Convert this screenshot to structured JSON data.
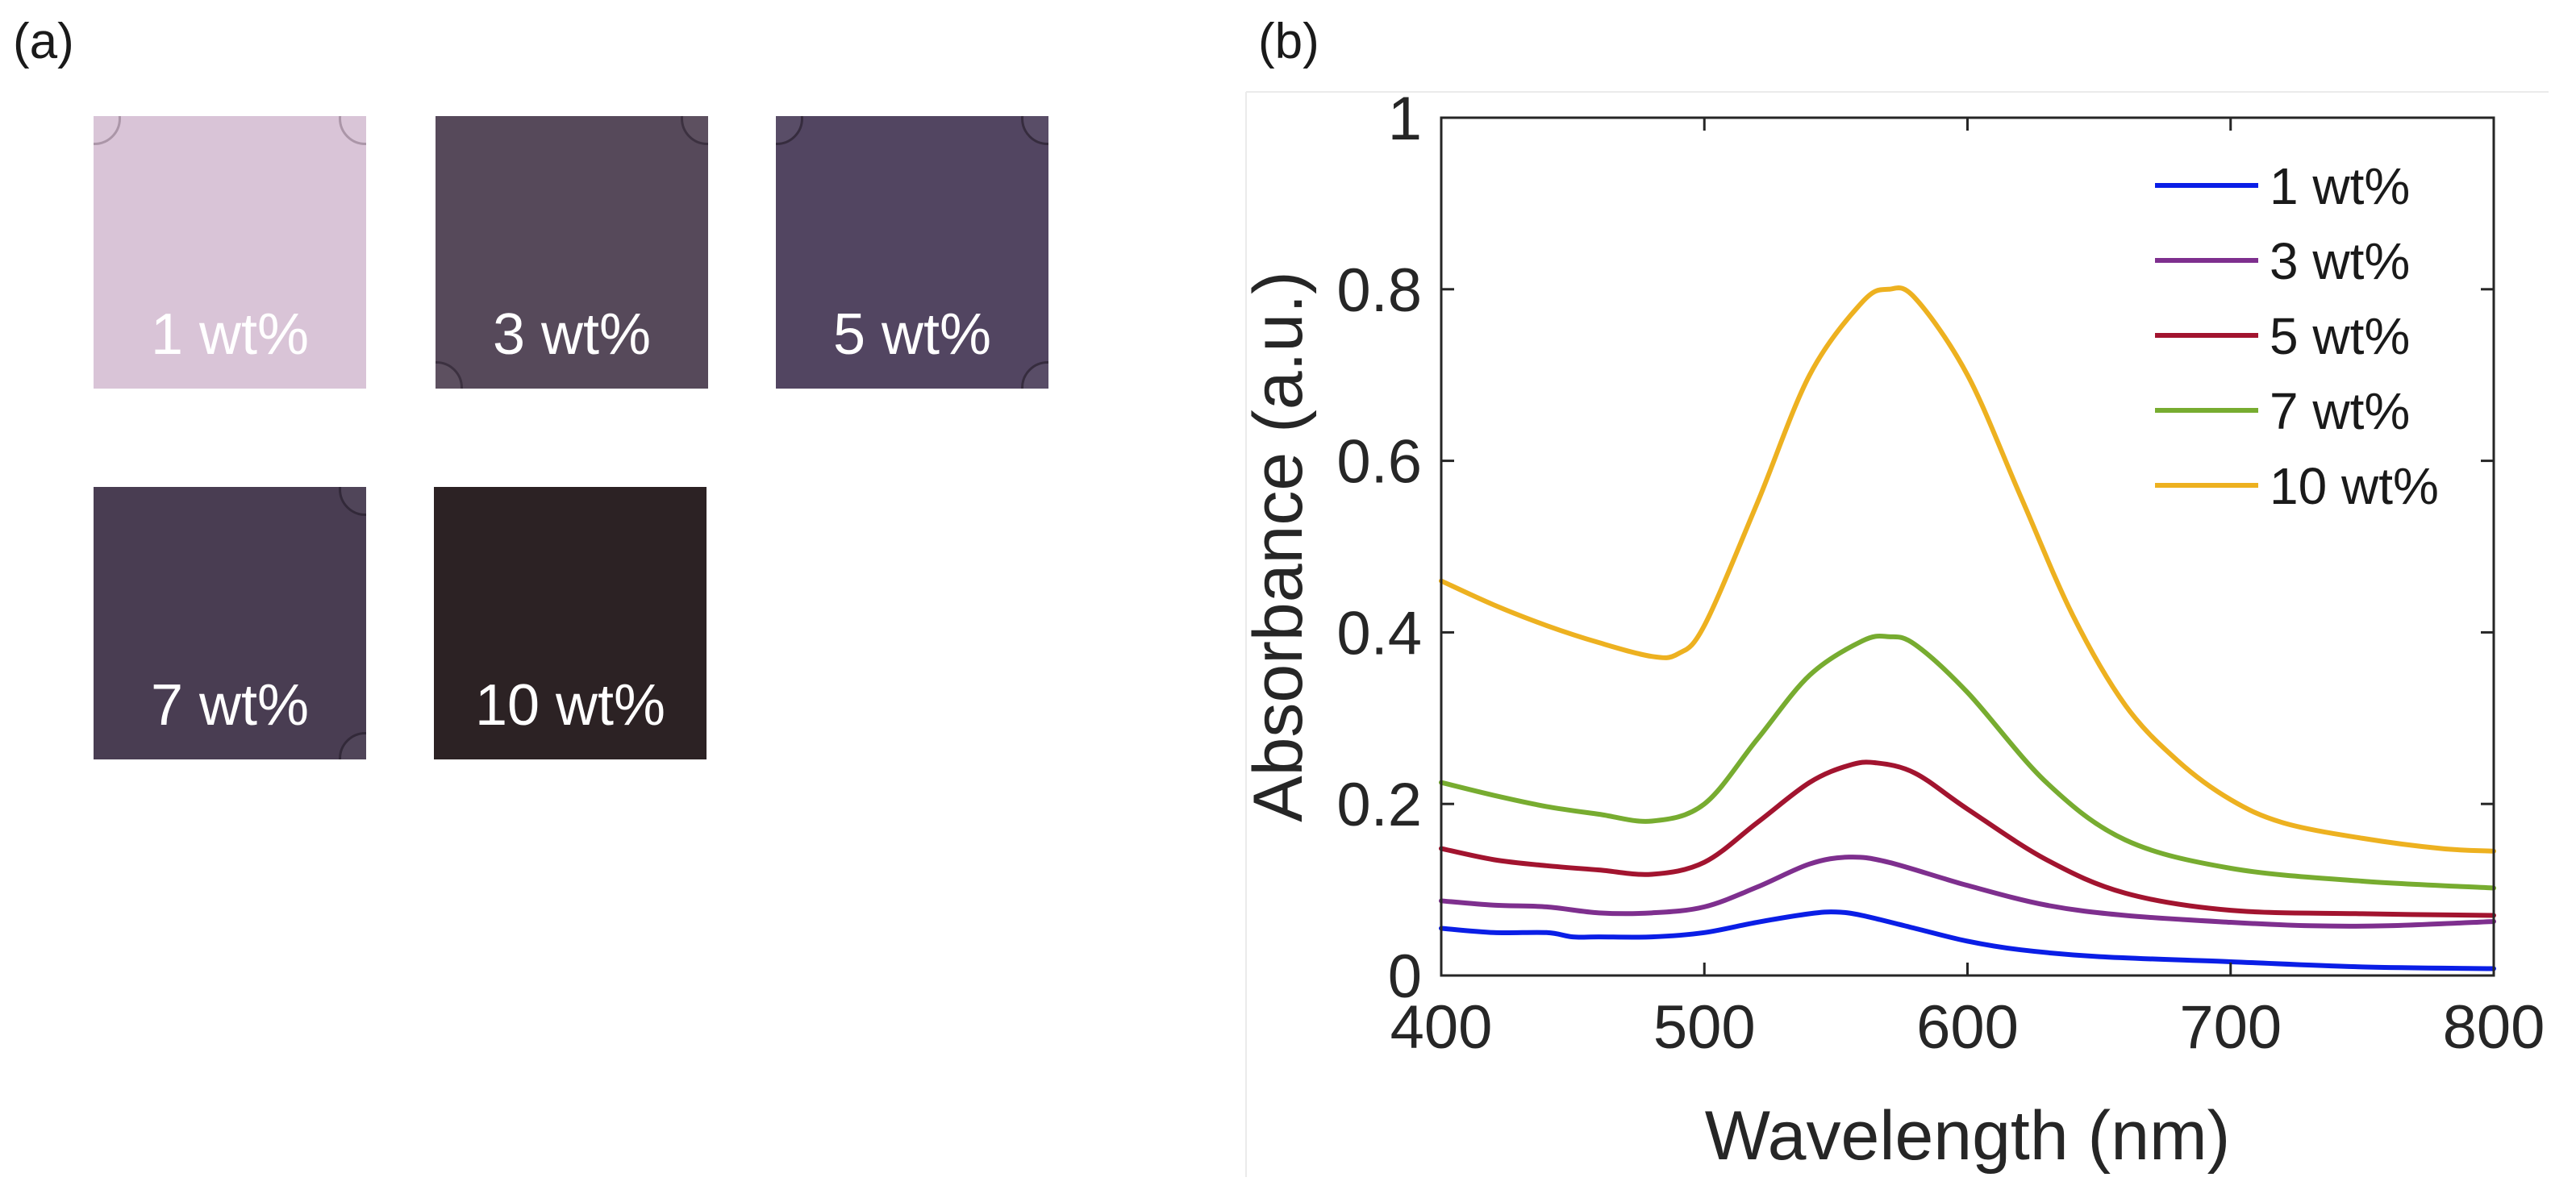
{
  "panel_a": {
    "label": "(a)",
    "samples": [
      {
        "label": "1 wt%",
        "color": "#d9c4d7",
        "edge": "#c9b1c6"
      },
      {
        "label": "3 wt%",
        "color": "#56495a",
        "edge": "#463a4b"
      },
      {
        "label": "5 wt%",
        "color": "#524561",
        "edge": "#3f3449"
      },
      {
        "label": "7 wt%",
        "color": "#493d52",
        "edge": "#3b3043"
      },
      {
        "label": "10 wt%",
        "color": "#2c2224",
        "edge": "#231b1d"
      }
    ]
  },
  "panel_b": {
    "label": "(b)"
  },
  "chart_data": {
    "type": "line",
    "title": "",
    "xlabel": "Wavelength (nm)",
    "ylabel": "Absorbance (a.u.)",
    "xlim": [
      400,
      800
    ],
    "ylim": [
      0,
      1
    ],
    "xticks": [
      "400",
      "500",
      "600",
      "700",
      "800"
    ],
    "yticks": [
      "0",
      "0.2",
      "0.4",
      "0.6",
      "0.8",
      "1"
    ],
    "legend_position": "top-right",
    "grid": false,
    "series": [
      {
        "name": "1 wt%",
        "color": "#0a1ee6",
        "x": [
          400,
          420,
          440,
          450,
          460,
          480,
          500,
          520,
          540,
          550,
          560,
          580,
          600,
          620,
          650,
          700,
          750,
          800
        ],
        "y": [
          0.055,
          0.05,
          0.05,
          0.045,
          0.045,
          0.045,
          0.05,
          0.062,
          0.072,
          0.074,
          0.07,
          0.055,
          0.04,
          0.03,
          0.022,
          0.016,
          0.01,
          0.008
        ]
      },
      {
        "name": "3 wt%",
        "color": "#7e2f8e",
        "x": [
          400,
          420,
          440,
          460,
          480,
          500,
          520,
          540,
          555,
          570,
          600,
          630,
          660,
          700,
          730,
          760,
          800
        ],
        "y": [
          0.087,
          0.082,
          0.08,
          0.073,
          0.073,
          0.08,
          0.103,
          0.13,
          0.138,
          0.132,
          0.105,
          0.082,
          0.07,
          0.062,
          0.058,
          0.058,
          0.063
        ]
      },
      {
        "name": "5 wt%",
        "color": "#a2142f",
        "x": [
          400,
          420,
          440,
          460,
          480,
          500,
          520,
          540,
          555,
          565,
          580,
          600,
          630,
          660,
          700,
          750,
          800
        ],
        "y": [
          0.148,
          0.135,
          0.128,
          0.123,
          0.118,
          0.132,
          0.178,
          0.225,
          0.245,
          0.248,
          0.236,
          0.194,
          0.135,
          0.096,
          0.076,
          0.072,
          0.07
        ]
      },
      {
        "name": "7 wt%",
        "color": "#77ac30",
        "x": [
          400,
          420,
          440,
          460,
          480,
          500,
          520,
          540,
          560,
          570,
          580,
          600,
          630,
          660,
          700,
          750,
          800
        ],
        "y": [
          0.225,
          0.21,
          0.197,
          0.188,
          0.18,
          0.2,
          0.275,
          0.35,
          0.39,
          0.395,
          0.386,
          0.33,
          0.225,
          0.158,
          0.125,
          0.11,
          0.102
        ]
      },
      {
        "name": "10 wt%",
        "color": "#edb120",
        "x": [
          400,
          420,
          440,
          460,
          480,
          490,
          500,
          520,
          540,
          560,
          570,
          580,
          600,
          620,
          640,
          660,
          680,
          700,
          720,
          750,
          780,
          800
        ],
        "y": [
          0.46,
          0.432,
          0.408,
          0.388,
          0.372,
          0.375,
          0.408,
          0.55,
          0.7,
          0.785,
          0.8,
          0.79,
          0.7,
          0.56,
          0.42,
          0.315,
          0.25,
          0.205,
          0.178,
          0.16,
          0.148,
          0.145
        ]
      }
    ]
  }
}
